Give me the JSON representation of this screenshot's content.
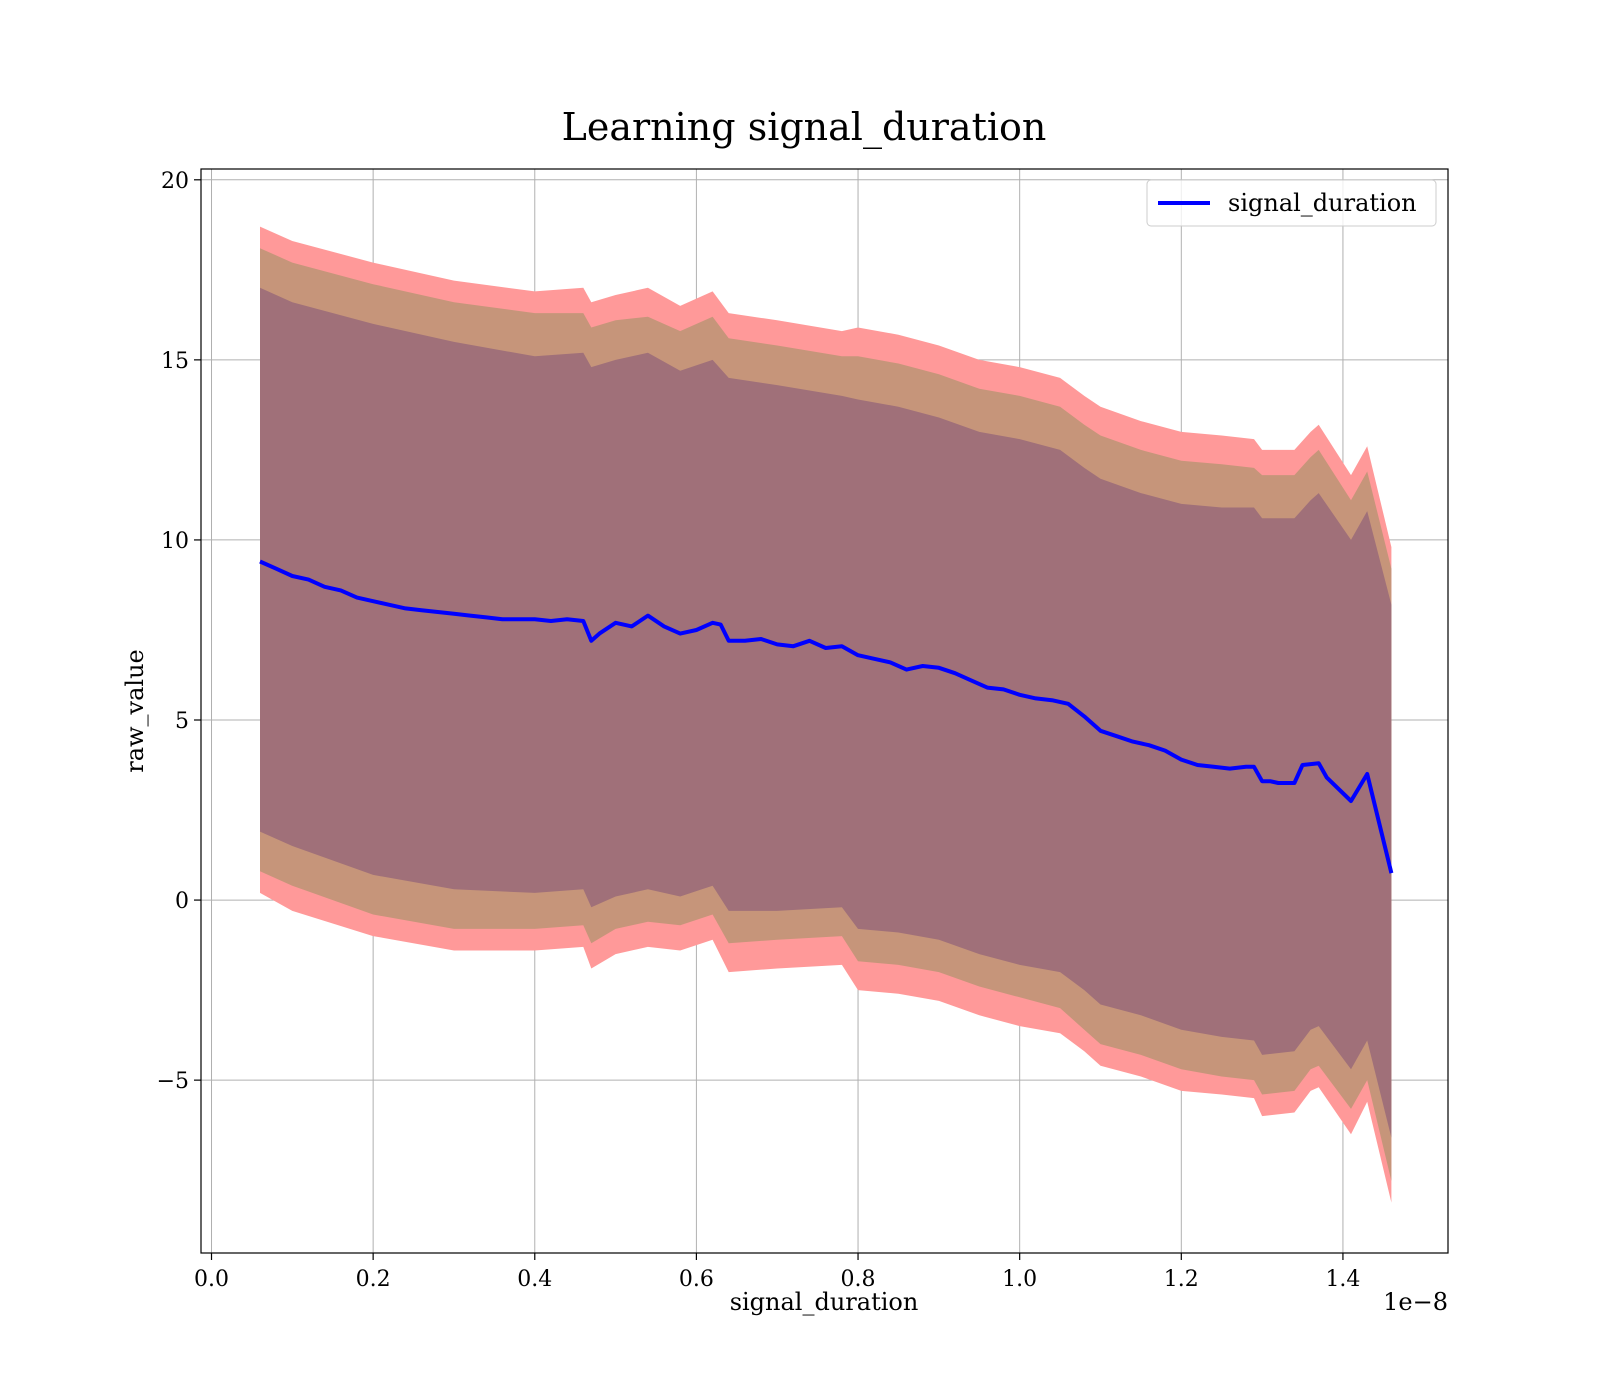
{
  "chart_data": {
    "type": "line",
    "title": "Learning signal_duration",
    "xlabel": "signal_duration",
    "ylabel": "raw_value",
    "x_offset_text": "1e−8",
    "xlim": [
      -0.013,
      1.53
    ],
    "ylim": [
      -9.8,
      20.3
    ],
    "grid": true,
    "legend_position": "top-right",
    "x_ticks": [
      0.0,
      0.2,
      0.4,
      0.6,
      0.8,
      1.0,
      1.2,
      1.4
    ],
    "x_tick_labels": [
      "0.0",
      "0.2",
      "0.4",
      "0.6",
      "0.8",
      "1.0",
      "1.2",
      "1.4"
    ],
    "y_ticks": [
      20,
      15,
      10,
      5,
      0,
      -5
    ],
    "y_tick_labels": [
      "20",
      "15",
      "10",
      "5",
      "0",
      "−5"
    ],
    "colors": {
      "line": "#0000ff",
      "band_outer": "#ff9999",
      "band_middle": "#c6957a",
      "band_inner": "#a07079",
      "grid": "#b0b0b0"
    },
    "series": [
      {
        "name": "signal_duration",
        "x": [
          0.06,
          0.08,
          0.1,
          0.12,
          0.14,
          0.16,
          0.18,
          0.2,
          0.22,
          0.24,
          0.26,
          0.28,
          0.3,
          0.32,
          0.34,
          0.36,
          0.38,
          0.4,
          0.42,
          0.44,
          0.46,
          0.47,
          0.48,
          0.5,
          0.52,
          0.54,
          0.56,
          0.58,
          0.6,
          0.62,
          0.63,
          0.64,
          0.66,
          0.68,
          0.7,
          0.72,
          0.74,
          0.76,
          0.78,
          0.8,
          0.82,
          0.84,
          0.86,
          0.88,
          0.9,
          0.92,
          0.94,
          0.96,
          0.98,
          1.0,
          1.02,
          1.04,
          1.06,
          1.08,
          1.1,
          1.12,
          1.14,
          1.16,
          1.18,
          1.2,
          1.22,
          1.24,
          1.26,
          1.28,
          1.29,
          1.3,
          1.31,
          1.32,
          1.34,
          1.35,
          1.37,
          1.38,
          1.41,
          1.43,
          1.46
        ],
        "y": [
          9.4,
          9.2,
          9.0,
          8.9,
          8.7,
          8.6,
          8.4,
          8.3,
          8.2,
          8.1,
          8.05,
          8.0,
          7.95,
          7.9,
          7.85,
          7.8,
          7.8,
          7.8,
          7.75,
          7.8,
          7.75,
          7.2,
          7.4,
          7.7,
          7.6,
          7.9,
          7.6,
          7.4,
          7.5,
          7.7,
          7.65,
          7.2,
          7.2,
          7.25,
          7.1,
          7.05,
          7.2,
          7.0,
          7.05,
          6.8,
          6.7,
          6.6,
          6.4,
          6.5,
          6.45,
          6.3,
          6.1,
          5.9,
          5.85,
          5.7,
          5.6,
          5.55,
          5.45,
          5.1,
          4.7,
          4.55,
          4.4,
          4.3,
          4.15,
          3.9,
          3.75,
          3.7,
          3.65,
          3.7,
          3.7,
          3.3,
          3.3,
          3.25,
          3.25,
          3.75,
          3.8,
          3.4,
          2.75,
          3.5,
          0.75
        ]
      }
    ],
    "bands": [
      {
        "level": "outer",
        "x": [
          0.06,
          0.1,
          0.2,
          0.3,
          0.4,
          0.46,
          0.47,
          0.5,
          0.54,
          0.58,
          0.62,
          0.64,
          0.7,
          0.78,
          0.8,
          0.85,
          0.9,
          0.95,
          1.0,
          1.05,
          1.08,
          1.1,
          1.15,
          1.2,
          1.25,
          1.29,
          1.3,
          1.34,
          1.36,
          1.37,
          1.41,
          1.43,
          1.46
        ],
        "lower": [
          0.2,
          -0.3,
          -1.0,
          -1.4,
          -1.4,
          -1.3,
          -1.9,
          -1.5,
          -1.3,
          -1.4,
          -1.1,
          -2.0,
          -1.9,
          -1.8,
          -2.5,
          -2.6,
          -2.8,
          -3.2,
          -3.5,
          -3.7,
          -4.2,
          -4.6,
          -4.9,
          -5.3,
          -5.4,
          -5.5,
          -6.0,
          -5.9,
          -5.3,
          -5.2,
          -6.5,
          -5.6,
          -8.4
        ],
        "upper": [
          18.7,
          18.3,
          17.7,
          17.2,
          16.9,
          17.0,
          16.6,
          16.8,
          17.0,
          16.5,
          16.9,
          16.3,
          16.1,
          15.8,
          15.9,
          15.7,
          15.4,
          15.0,
          14.8,
          14.5,
          14.0,
          13.7,
          13.3,
          13.0,
          12.9,
          12.8,
          12.5,
          12.5,
          13.0,
          13.2,
          11.8,
          12.6,
          9.8
        ]
      },
      {
        "level": "middle",
        "x": [
          0.06,
          0.1,
          0.2,
          0.3,
          0.4,
          0.46,
          0.47,
          0.5,
          0.54,
          0.58,
          0.62,
          0.64,
          0.7,
          0.78,
          0.8,
          0.85,
          0.9,
          0.95,
          1.0,
          1.05,
          1.08,
          1.1,
          1.15,
          1.2,
          1.25,
          1.29,
          1.3,
          1.34,
          1.36,
          1.37,
          1.41,
          1.43,
          1.46
        ],
        "lower": [
          0.8,
          0.4,
          -0.4,
          -0.8,
          -0.8,
          -0.7,
          -1.2,
          -0.8,
          -0.6,
          -0.7,
          -0.4,
          -1.2,
          -1.1,
          -1.0,
          -1.7,
          -1.8,
          -2.0,
          -2.4,
          -2.7,
          -3.0,
          -3.6,
          -4.0,
          -4.3,
          -4.7,
          -4.9,
          -5.0,
          -5.4,
          -5.3,
          -4.7,
          -4.6,
          -5.8,
          -5.0,
          -7.8
        ],
        "upper": [
          18.1,
          17.7,
          17.1,
          16.6,
          16.3,
          16.3,
          15.9,
          16.1,
          16.2,
          15.8,
          16.2,
          15.6,
          15.4,
          15.1,
          15.1,
          14.9,
          14.6,
          14.2,
          14.0,
          13.7,
          13.2,
          12.9,
          12.5,
          12.2,
          12.1,
          12.0,
          11.8,
          11.8,
          12.3,
          12.5,
          11.1,
          11.9,
          9.2
        ]
      },
      {
        "level": "inner",
        "x": [
          0.06,
          0.1,
          0.2,
          0.3,
          0.4,
          0.46,
          0.47,
          0.5,
          0.54,
          0.58,
          0.62,
          0.64,
          0.7,
          0.78,
          0.8,
          0.85,
          0.9,
          0.95,
          1.0,
          1.05,
          1.08,
          1.1,
          1.15,
          1.2,
          1.25,
          1.29,
          1.3,
          1.34,
          1.36,
          1.37,
          1.41,
          1.43,
          1.46
        ],
        "lower": [
          1.9,
          1.5,
          0.7,
          0.3,
          0.2,
          0.3,
          -0.2,
          0.1,
          0.3,
          0.1,
          0.4,
          -0.3,
          -0.3,
          -0.2,
          -0.8,
          -0.9,
          -1.1,
          -1.5,
          -1.8,
          -2.0,
          -2.5,
          -2.9,
          -3.2,
          -3.6,
          -3.8,
          -3.9,
          -4.3,
          -4.2,
          -3.6,
          -3.5,
          -4.7,
          -3.9,
          -6.6
        ],
        "upper": [
          17.0,
          16.6,
          16.0,
          15.5,
          15.1,
          15.2,
          14.8,
          15.0,
          15.2,
          14.7,
          15.0,
          14.5,
          14.3,
          14.0,
          13.9,
          13.7,
          13.4,
          13.0,
          12.8,
          12.5,
          12.0,
          11.7,
          11.3,
          11.0,
          10.9,
          10.9,
          10.6,
          10.6,
          11.1,
          11.3,
          10.0,
          10.8,
          8.2
        ]
      }
    ]
  }
}
